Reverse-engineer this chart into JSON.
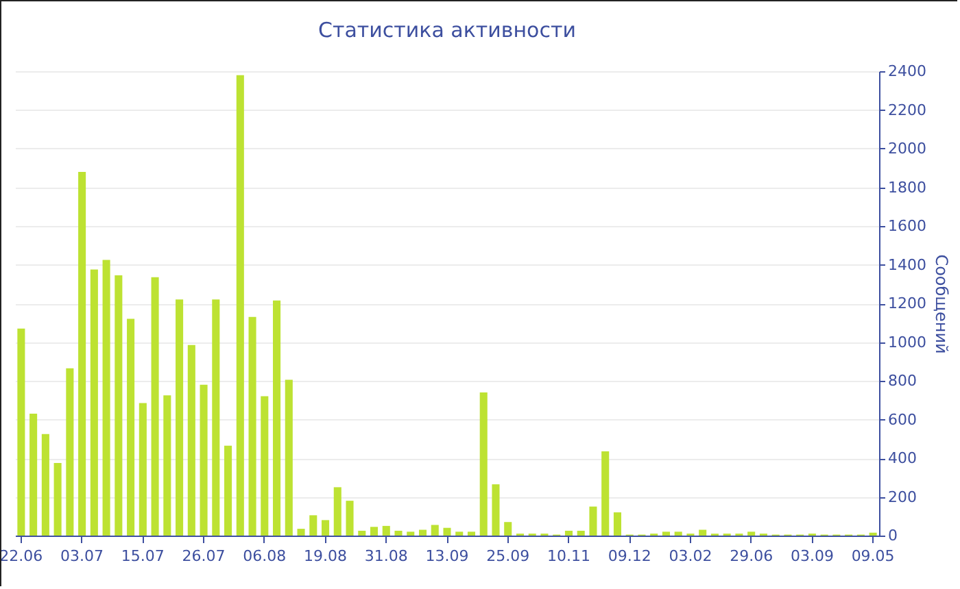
{
  "chart_data": {
    "type": "bar",
    "title": "Статистика активности",
    "ylabel": "Сообщений",
    "categories": [
      "22.06",
      null,
      null,
      null,
      null,
      "03.07",
      null,
      null,
      null,
      null,
      "15.07",
      null,
      null,
      null,
      null,
      "26.07",
      null,
      null,
      null,
      null,
      "06.08",
      null,
      null,
      null,
      null,
      "19.08",
      null,
      null,
      null,
      null,
      "31.08",
      null,
      null,
      null,
      null,
      "13.09",
      null,
      null,
      null,
      null,
      "25.09",
      null,
      null,
      null,
      null,
      "10.11",
      null,
      null,
      null,
      null,
      "09.12",
      null,
      null,
      null,
      null,
      "03.02",
      null,
      null,
      null,
      null,
      "29.06",
      null,
      null,
      null,
      null,
      "03.09",
      null,
      null,
      null,
      null,
      "09.05"
    ],
    "series": [
      {
        "color": "#bde232",
        "values": [
          1070,
          630,
          525,
          375,
          865,
          1880,
          1375,
          1425,
          1345,
          1120,
          685,
          1335,
          725,
          1220,
          985,
          780,
          1220,
          465,
          2380,
          1130,
          720,
          1215,
          805,
          35,
          105,
          80,
          250,
          180,
          25,
          45,
          50,
          25,
          20,
          30,
          55,
          40,
          20,
          20,
          740,
          265,
          70,
          10,
          10,
          10,
          5,
          25,
          25,
          150,
          435,
          120,
          5,
          5,
          10,
          20,
          20,
          10,
          30,
          10,
          10,
          10,
          20,
          10,
          5,
          5,
          5,
          10,
          5,
          5,
          5,
          5,
          15
        ]
      }
    ],
    "ylim": [
      0,
      2400
    ],
    "yticks": [
      0,
      200,
      400,
      600,
      800,
      1000,
      1200,
      1400,
      1600,
      1800,
      2000,
      2200,
      2400
    ],
    "grid": "y"
  }
}
